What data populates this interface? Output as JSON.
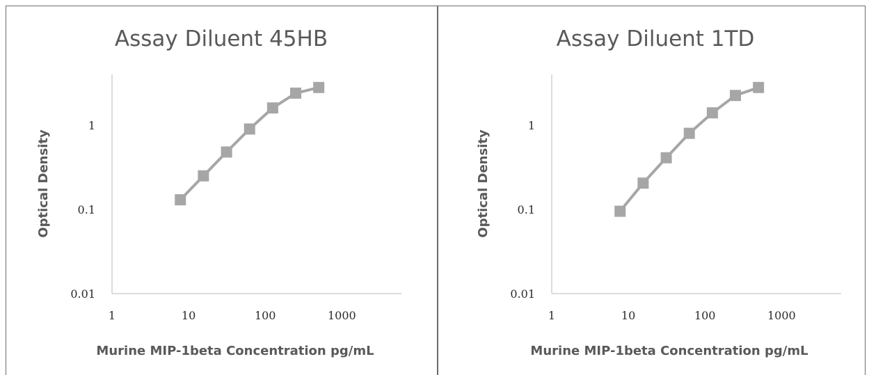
{
  "chart_data": [
    {
      "type": "line",
      "title": "Assay Diluent 45HB",
      "xlabel": "Murine MIP-1beta Concentration pg/mL",
      "ylabel": "Optical Density",
      "x_scale": "log",
      "y_scale": "log",
      "xlim": [
        1,
        6000
      ],
      "ylim": [
        0.01,
        4
      ],
      "x_ticks": [
        "1",
        "10",
        "100",
        "1000"
      ],
      "y_ticks": [
        "0.01",
        "0.1",
        "1"
      ],
      "grid": false,
      "marker": "square",
      "color": "#a6a6a6",
      "series": [
        {
          "x": [
            7.8,
            15.6,
            31.25,
            62.5,
            125,
            250,
            500
          ],
          "y": [
            0.13,
            0.25,
            0.48,
            0.9,
            1.6,
            2.4,
            2.8
          ]
        }
      ]
    },
    {
      "type": "line",
      "title": "Assay Diluent 1TD",
      "xlabel": "Murine MIP-1beta Concentration pg/mL",
      "ylabel": "Optical Density",
      "x_scale": "log",
      "y_scale": "log",
      "xlim": [
        1,
        6000
      ],
      "ylim": [
        0.01,
        4
      ],
      "x_ticks": [
        "1",
        "10",
        "100",
        "1000"
      ],
      "y_ticks": [
        "0.01",
        "0.1",
        "1"
      ],
      "grid": false,
      "marker": "square",
      "color": "#a6a6a6",
      "series": [
        {
          "x": [
            7.8,
            15.6,
            31.25,
            62.5,
            125,
            250,
            500
          ],
          "y": [
            0.095,
            0.205,
            0.41,
            0.8,
            1.4,
            2.25,
            2.8
          ]
        }
      ]
    }
  ]
}
